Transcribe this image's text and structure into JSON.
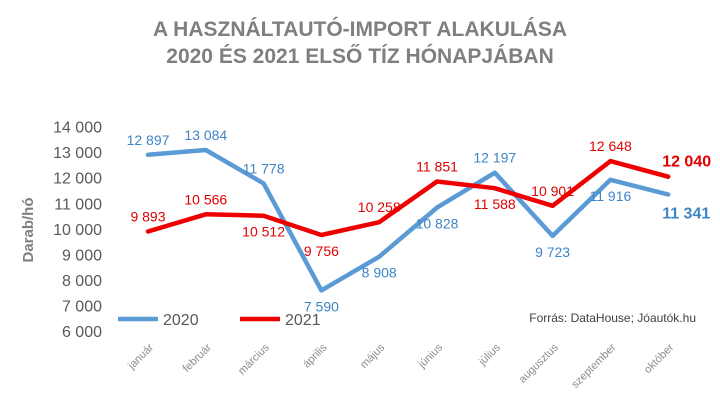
{
  "chart_data": {
    "type": "line",
    "title": [
      "A HASZNÁLTAUTÓ-IMPORT ALAKULÁSA",
      "2020 ÉS 2021 ELSŐ TÍZ HÓNAPJÁBAN"
    ],
    "ylabel": "Darab/hó",
    "xlabel": "",
    "ylim": [
      6000,
      14000
    ],
    "yticks": [
      6000,
      7000,
      8000,
      9000,
      10000,
      11000,
      12000,
      13000,
      14000
    ],
    "ytick_labels": [
      "6 000",
      "7 000",
      "8 000",
      "9 000",
      "10 000",
      "11 000",
      "12 000",
      "13 000",
      "14 000"
    ],
    "grid": false,
    "legend_position": "bottom-left",
    "categories": [
      "január",
      "február",
      "március",
      "április",
      "május",
      "június",
      "július",
      "augusztus",
      "szeptember",
      "október"
    ],
    "series": [
      {
        "name": "2020",
        "color": "#5b9bd5",
        "label_color": "#3d85c6",
        "values": [
          12897,
          13084,
          11778,
          7590,
          8908,
          10828,
          12197,
          9723,
          11916,
          11341
        ],
        "labels": [
          "12 897",
          "13 084",
          "11 778",
          "7 590",
          "8 908",
          "10 828",
          "12 197",
          "9 723",
          "11 916",
          "11 341"
        ]
      },
      {
        "name": "2021",
        "color": "#ee0000",
        "label_color": "#e00000",
        "values": [
          9893,
          10566,
          10512,
          9756,
          10258,
          11851,
          11588,
          10901,
          12648,
          12040
        ],
        "labels": [
          "9 893",
          "10 566",
          "10 512",
          "9 756",
          "10 258",
          "11 851",
          "11 588",
          "10 901",
          "12 648",
          "12 040"
        ]
      }
    ],
    "source": "Forrás: DataHouse; Jóautók.hu"
  }
}
